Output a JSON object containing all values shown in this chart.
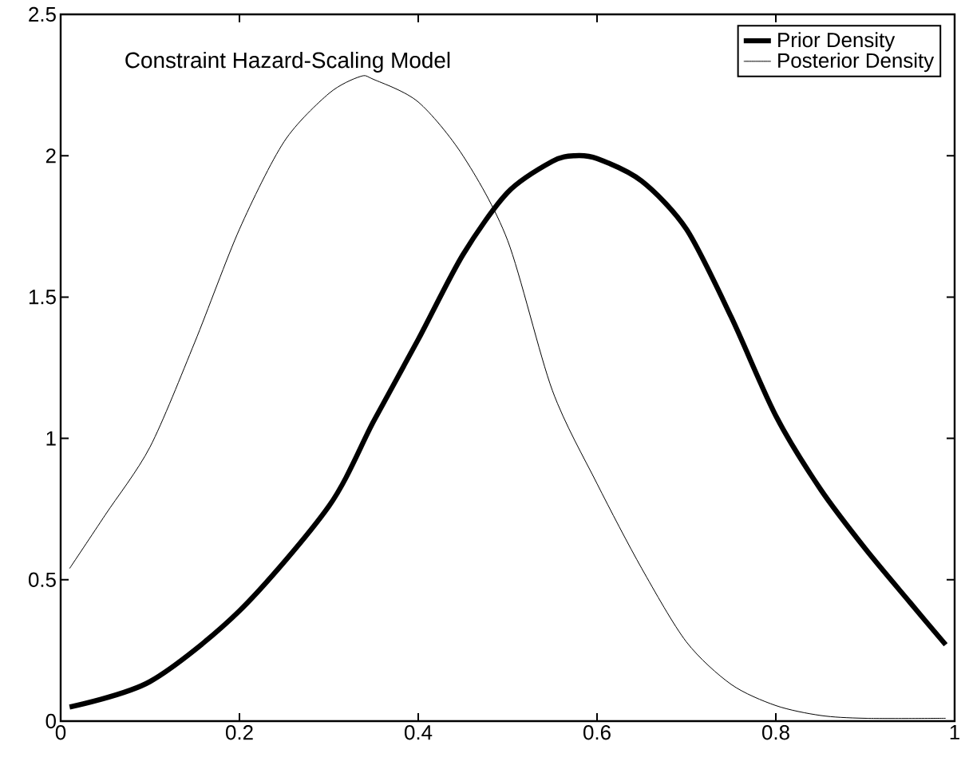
{
  "chart_data": {
    "type": "line",
    "title": "Constraint Hazard-Scaling Model",
    "xlim": [
      0,
      1
    ],
    "ylim": [
      0,
      2.5
    ],
    "xticks": [
      0,
      0.2,
      0.4,
      0.6,
      0.8,
      1
    ],
    "yticks": [
      0,
      0.5,
      1,
      1.5,
      2,
      2.5
    ],
    "legend": "top right",
    "grid": false,
    "marker": "none",
    "line_style": "solid",
    "series": [
      {
        "name": "Prior Density",
        "color": "#000000",
        "x": [
          0.01,
          0.1,
          0.2,
          0.3,
          0.35,
          0.4,
          0.45,
          0.5,
          0.55,
          0.575,
          0.6,
          0.65,
          0.7,
          0.75,
          0.8,
          0.85,
          0.9,
          0.95,
          0.99
        ],
        "values": [
          0.05,
          0.14,
          0.39,
          0.76,
          1.06,
          1.35,
          1.65,
          1.87,
          1.98,
          2.0,
          1.99,
          1.91,
          1.74,
          1.43,
          1.08,
          0.82,
          0.61,
          0.42,
          0.27
        ]
      },
      {
        "name": "Posterior Density",
        "color": "#000000",
        "x": [
          0.01,
          0.05,
          0.1,
          0.15,
          0.2,
          0.25,
          0.3,
          0.335,
          0.35,
          0.4,
          0.45,
          0.5,
          0.55,
          0.6,
          0.65,
          0.7,
          0.75,
          0.8,
          0.85,
          0.9,
          0.99
        ],
        "values": [
          0.54,
          0.73,
          0.97,
          1.34,
          1.74,
          2.05,
          2.22,
          2.28,
          2.27,
          2.19,
          2.0,
          1.7,
          1.17,
          0.84,
          0.54,
          0.28,
          0.13,
          0.055,
          0.02,
          0.01,
          0.01
        ]
      }
    ]
  }
}
